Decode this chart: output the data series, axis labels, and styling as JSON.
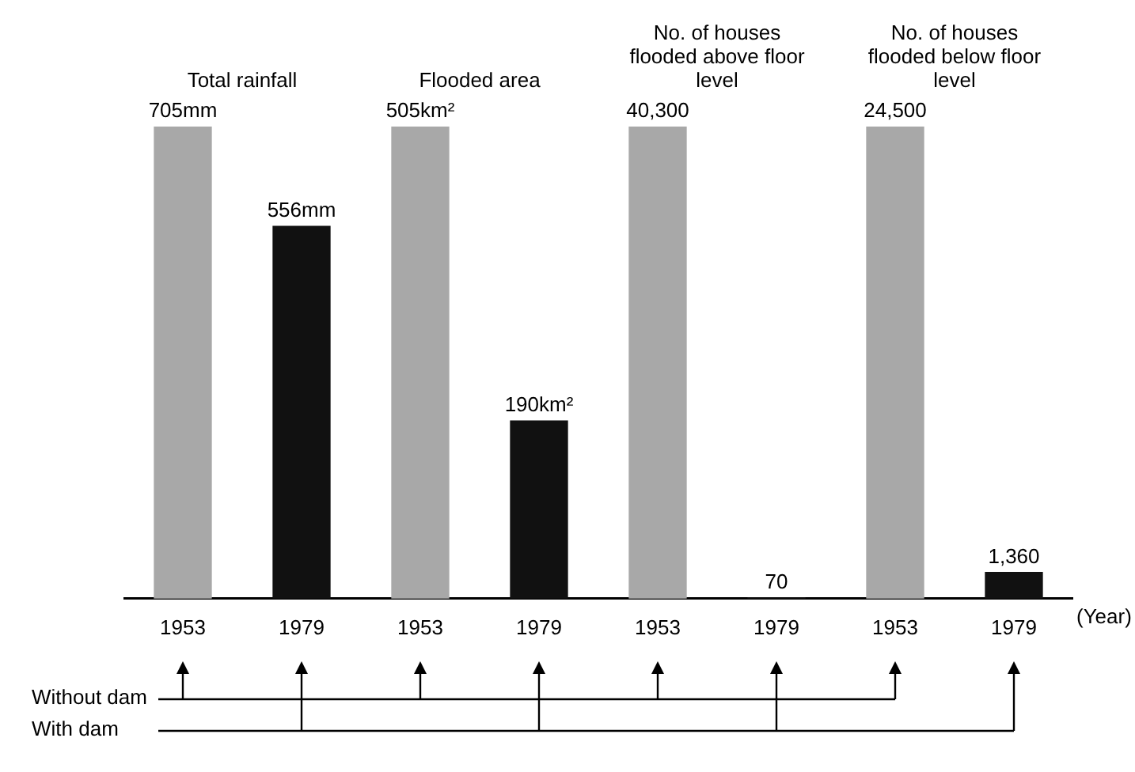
{
  "chart_data": [
    {
      "type": "bar",
      "title": "Total rainfall",
      "categories": [
        "1953",
        "1979"
      ],
      "values": [
        705,
        556
      ],
      "value_labels": [
        "705mm",
        "556mm"
      ],
      "colors": [
        "#a8a8a8",
        "#111111"
      ],
      "annotations": [
        "Without dam",
        "With dam"
      ]
    },
    {
      "type": "bar",
      "title": "Flooded area",
      "categories": [
        "1953",
        "1979"
      ],
      "values": [
        505,
        190
      ],
      "value_labels": [
        "505km²",
        "190km²"
      ],
      "colors": [
        "#a8a8a8",
        "#111111"
      ]
    },
    {
      "type": "bar",
      "title": "No. of houses flooded above floor level",
      "categories": [
        "1953",
        "1979"
      ],
      "values": [
        40300,
        70
      ],
      "value_labels": [
        "40,300",
        "70"
      ],
      "colors": [
        "#a8a8a8",
        "#111111"
      ]
    },
    {
      "type": "bar",
      "title": "No. of houses flooded below floor level",
      "xlabel": "(Year)",
      "categories": [
        "1953",
        "1979"
      ],
      "values": [
        24500,
        1360
      ],
      "value_labels": [
        "24,500",
        "1,360"
      ],
      "colors": [
        "#a8a8a8",
        "#111111"
      ]
    }
  ]
}
